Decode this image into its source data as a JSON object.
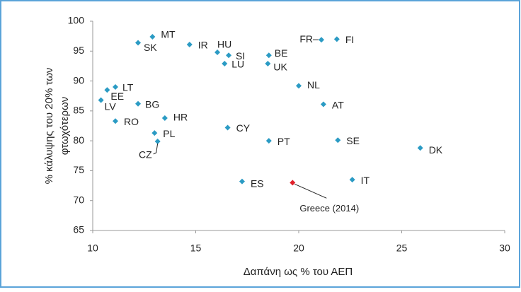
{
  "chart_data": {
    "type": "scatter",
    "xlabel": "Δαπάνη ως % του ΑΕΠ",
    "ylabel": [
      "% κάλυψης του 20% των",
      "φτωχότερων"
    ],
    "labels": [
      "MT",
      "SK",
      "IR",
      "HU",
      "SI",
      "LU",
      "BE",
      "UK",
      "FR",
      "FI",
      "NL",
      "AT",
      "LT",
      "EE",
      "LV",
      "BG",
      "RO",
      "HR",
      "PL",
      "CZ",
      "CY",
      "PT",
      "SE",
      "DK",
      "ES",
      "IT"
    ],
    "x": [
      12.9,
      12.2,
      14.7,
      16.05,
      16.6,
      16.4,
      18.55,
      18.5,
      21.1,
      21.85,
      20.0,
      21.2,
      11.1,
      10.7,
      10.4,
      12.2,
      11.1,
      13.5,
      13.0,
      13.15,
      16.55,
      18.55,
      21.9,
      25.9,
      17.25,
      22.6
    ],
    "values": [
      97.4,
      96.4,
      96.1,
      94.8,
      94.3,
      92.9,
      94.3,
      92.9,
      96.9,
      97.0,
      89.2,
      86.1,
      89.0,
      88.5,
      86.8,
      86.2,
      83.3,
      83.8,
      81.3,
      79.9,
      82.2,
      80.0,
      80.1,
      78.8,
      73.2,
      73.5
    ],
    "color": "#2b9bc4",
    "highlight": {
      "label": "Greece (2014)",
      "x": 19.7,
      "value": 73.0,
      "color": "#e0202a"
    },
    "xlim": [
      10,
      30
    ],
    "xticks": [
      10,
      15,
      20,
      25,
      30
    ],
    "ylim": [
      65,
      100
    ],
    "yticks": [
      65,
      70,
      75,
      80,
      85,
      90,
      95,
      100
    ]
  }
}
